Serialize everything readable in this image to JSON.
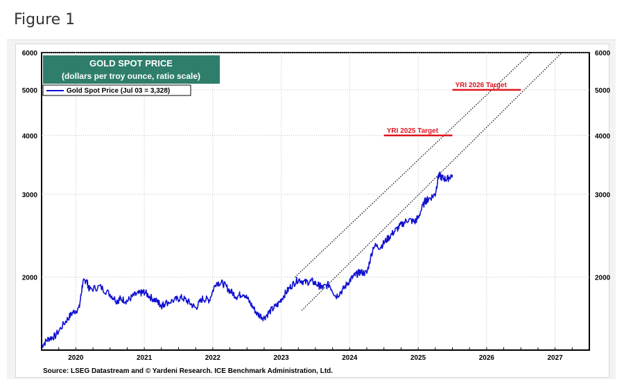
{
  "page": {
    "figure_label": "Figure 1"
  },
  "chart_data": {
    "type": "line",
    "title": "GOLD SPOT PRICE",
    "subtitle": "(dollars per troy ounce, ratio scale)",
    "legend": {
      "entry": "Gold Spot Price (Jul 03 = 3,328)",
      "placement": "top-left"
    },
    "source": "Source: LSEG Datastream and © Yardeni Research. ICE Benchmark Administration, Ltd.",
    "y_scale": "log",
    "ylim": [
      1400,
      6000
    ],
    "xlim": [
      2019.5,
      2027.5
    ],
    "yticks": [
      2000,
      3000,
      4000,
      5000,
      6000
    ],
    "ytick_labels": [
      "2000",
      "3000",
      "4000",
      "5000",
      "6000"
    ],
    "xticks": [
      2020,
      2021,
      2022,
      2023,
      2024,
      2025,
      2026,
      2027
    ],
    "xtick_labels": [
      "2020",
      "2021",
      "2022",
      "2023",
      "2024",
      "2025",
      "2026",
      "2027"
    ],
    "grid": true,
    "colors": {
      "series": "#1010d0",
      "target": "#e0141e",
      "title_box": "#2e7e6b"
    },
    "series": [
      {
        "name": "Gold Spot Price (Jul 03 = 3,328)",
        "x": [
          2019.5,
          2019.6,
          2019.7,
          2019.85,
          2019.95,
          2020.05,
          2020.1,
          2020.15,
          2020.2,
          2020.35,
          2020.5,
          2020.6,
          2020.65,
          2020.75,
          2020.85,
          2020.95,
          2021.0,
          2021.1,
          2021.2,
          2021.25,
          2021.3,
          2021.45,
          2021.55,
          2021.65,
          2021.75,
          2021.85,
          2021.95,
          2022.05,
          2022.15,
          2022.25,
          2022.35,
          2022.45,
          2022.55,
          2022.65,
          2022.75,
          2022.85,
          2022.95,
          2023.05,
          2023.15,
          2023.25,
          2023.35,
          2023.45,
          2023.55,
          2023.6,
          2023.7,
          2023.8,
          2023.9,
          2024.0,
          2024.08,
          2024.15,
          2024.25,
          2024.35,
          2024.45,
          2024.55,
          2024.65,
          2024.75,
          2024.85,
          2024.95,
          2025.0,
          2025.1,
          2025.15,
          2025.25,
          2025.3,
          2025.35,
          2025.42,
          2025.5
        ],
        "values": [
          1430,
          1480,
          1500,
          1610,
          1680,
          1720,
          1940,
          1980,
          1880,
          1910,
          1840,
          1780,
          1800,
          1780,
          1830,
          1850,
          1860,
          1810,
          1770,
          1740,
          1760,
          1790,
          1810,
          1770,
          1720,
          1800,
          1790,
          1950,
          1940,
          1870,
          1820,
          1850,
          1760,
          1670,
          1640,
          1700,
          1750,
          1840,
          1920,
          1980,
          1950,
          1960,
          1920,
          1900,
          1930,
          1820,
          1880,
          1970,
          2020,
          2050,
          2040,
          2330,
          2320,
          2410,
          2500,
          2580,
          2650,
          2620,
          2680,
          2900,
          2930,
          3000,
          3300,
          3250,
          3230,
          3300
        ]
      }
    ],
    "trend_channel": {
      "upper": {
        "from": [
          2023.2,
          2000
        ],
        "to": [
          2026.65,
          6000
        ]
      },
      "lower": {
        "from": [
          2023.3,
          1700
        ],
        "to": [
          2027.1,
          6000
        ]
      }
    },
    "annotations": [
      {
        "label": "YRI 2025 Target",
        "value": 4000,
        "x_from": 2024.5,
        "x_to": 2025.5
      },
      {
        "label": "YRI 2026 Target",
        "value": 5000,
        "x_from": 2025.5,
        "x_to": 2026.5
      }
    ]
  }
}
